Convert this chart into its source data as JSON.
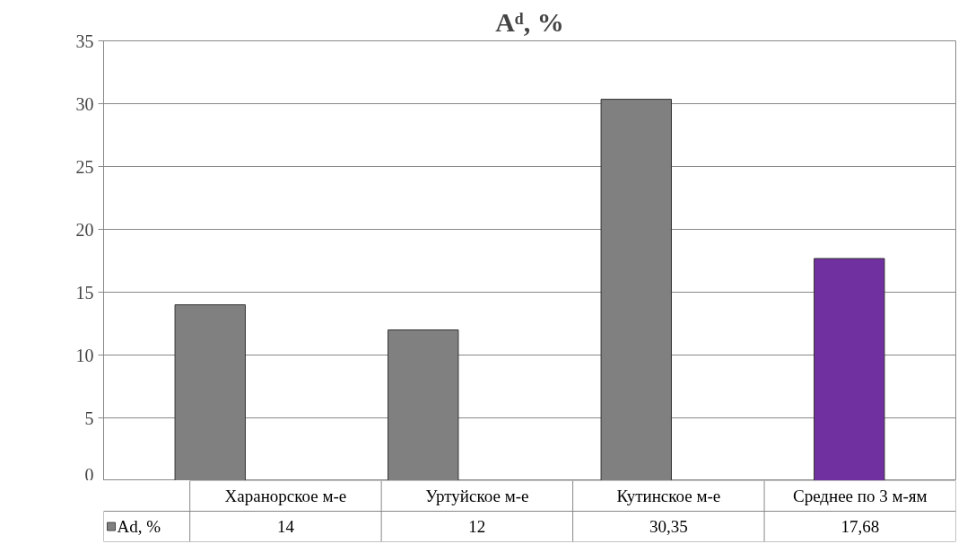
{
  "chart_data": {
    "type": "bar",
    "title": "Aᵈ, %",
    "categories": [
      "Харанорское м-е",
      "Уртуйское м-е",
      "Кутинское м-е",
      "Среднее по 3 м-ям"
    ],
    "series": [
      {
        "name": "Ad, %",
        "color": "#808080",
        "colors": [
          "#808080",
          "#808080",
          "#808080",
          "#7030a0"
        ],
        "values": [
          14,
          12,
          30.35,
          17.68
        ],
        "value_labels": [
          "14",
          "12",
          "30,35",
          "17,68"
        ]
      }
    ],
    "ylim": [
      0,
      35
    ],
    "yticks": [
      0,
      5,
      10,
      15,
      20,
      25,
      30,
      35
    ],
    "grid": "y",
    "legend": "bottom left"
  }
}
